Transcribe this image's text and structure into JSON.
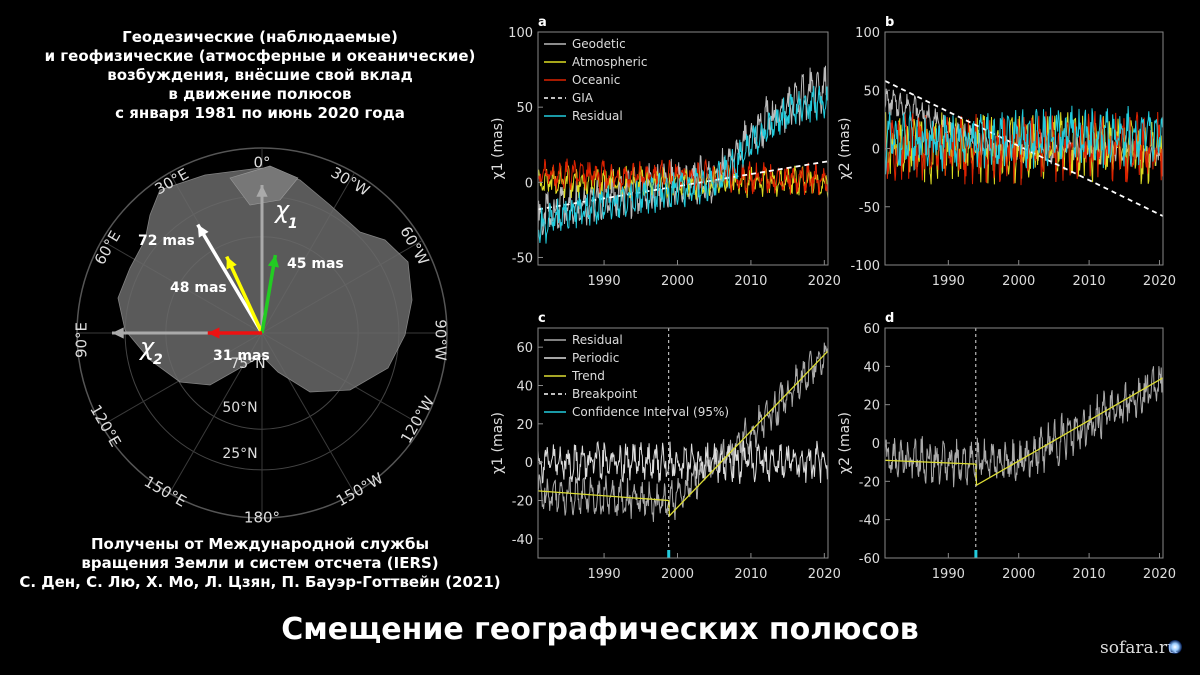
{
  "intro": {
    "lines": [
      "Геодезические (наблюдаемые)",
      "и геофизические (атмосферные и океанические)",
      "возбуждения, внёсшие свой вклад",
      "в движение полюсов",
      "с января 1981 по июнь 2020 года"
    ]
  },
  "source": {
    "lines": [
      "Получены от Международной службы",
      "вращения Земли и систем отсчета (IERS)",
      "С. Ден, С. Лю, Х. Мо, Л. Цзян, П. Бауэр-Готтвейн (2021)"
    ]
  },
  "title": "Смещение географических полюсов",
  "site": "sofara.ru",
  "polar_map": {
    "longitude_labels": [
      "0°",
      "30°W",
      "60°W",
      "90°W",
      "120°W",
      "150°W",
      "180°",
      "150°E",
      "120°E",
      "90°E",
      "60°E",
      "30°E"
    ],
    "latitude_labels": [
      "75°N",
      "50°N",
      "25°N"
    ],
    "axis_labels": {
      "chi1": "χ",
      "chi1_sub": "1",
      "chi2": "χ",
      "chi2_sub": "2"
    },
    "vectors": [
      {
        "label": "72 mas",
        "color": "#ffffff",
        "magnitude_mas": 72
      },
      {
        "label": "48 mas",
        "color": "#ffff00",
        "magnitude_mas": 48
      },
      {
        "label": "45 mas",
        "color": "#22cc22",
        "magnitude_mas": 45
      },
      {
        "label": "31 mas",
        "color": "#ee1111",
        "magnitude_mas": 31
      }
    ]
  },
  "chart_data": [
    {
      "panel": "a",
      "type": "line",
      "ylabel": "χ1 (mas)",
      "xlim": [
        1981,
        2020.5
      ],
      "ylim": [
        -55,
        100
      ],
      "xticks": [
        1990,
        2000,
        2010,
        2020
      ],
      "yticks": [
        -50,
        0,
        50,
        100
      ],
      "legend": "top-left",
      "series": [
        {
          "name": "Geodetic",
          "color": "#bbbbbb",
          "x": [
            1981,
            1985,
            1990,
            1995,
            2000,
            2005,
            2008,
            2010,
            2012,
            2015,
            2018,
            2020.5
          ],
          "y": [
            -25,
            -15,
            -10,
            -5,
            -2,
            2,
            15,
            30,
            40,
            50,
            60,
            62
          ]
        },
        {
          "name": "Atmospheric",
          "color": "#dddd22",
          "x": [
            1981,
            2020.5
          ],
          "y": [
            0,
            0
          ]
        },
        {
          "name": "Oceanic",
          "color": "#dd2200",
          "x": [
            1981,
            2020.5
          ],
          "y": [
            5,
            2
          ]
        },
        {
          "name": "GIA",
          "color": "#ffffff",
          "dashed": true,
          "x": [
            1981,
            2020.5
          ],
          "y": [
            -18,
            14
          ]
        },
        {
          "name": "Residual",
          "color": "#22ccdd",
          "x": [
            1981,
            1985,
            1990,
            1995,
            2000,
            2005,
            2008,
            2010,
            2012,
            2015,
            2018,
            2020.5
          ],
          "y": [
            -30,
            -20,
            -15,
            -10,
            -5,
            0,
            12,
            28,
            35,
            45,
            52,
            55
          ]
        }
      ]
    },
    {
      "panel": "b",
      "type": "line",
      "ylabel": "χ2 (mas)",
      "xlim": [
        1981,
        2020.5
      ],
      "ylim": [
        -100,
        100
      ],
      "xticks": [
        1990,
        2000,
        2010,
        2020
      ],
      "yticks": [
        -100,
        -50,
        0,
        50,
        100
      ],
      "series": [
        {
          "name": "Geodetic",
          "color": "#bbbbbb",
          "x": [
            1981,
            1985,
            1990,
            1995,
            2000,
            2005,
            2010,
            2015,
            2020.5
          ],
          "y": [
            40,
            35,
            15,
            5,
            0,
            0,
            0,
            0,
            -5
          ]
        },
        {
          "name": "Atmospheric",
          "color": "#dddd22",
          "x": [
            1981,
            2020.5
          ],
          "y": [
            0,
            0
          ]
        },
        {
          "name": "Oceanic",
          "color": "#dd2200",
          "x": [
            1981,
            2020.5
          ],
          "y": [
            0,
            0
          ]
        },
        {
          "name": "GIA",
          "color": "#ffffff",
          "dashed": true,
          "x": [
            1981,
            2020.5
          ],
          "y": [
            58,
            -58
          ]
        },
        {
          "name": "Residual",
          "color": "#22ccdd",
          "x": [
            1981,
            1990,
            2000,
            2010,
            2020.5
          ],
          "y": [
            5,
            5,
            8,
            10,
            12
          ]
        }
      ]
    },
    {
      "panel": "c",
      "type": "line",
      "ylabel": "χ1 (mas)",
      "xlim": [
        1981,
        2020.5
      ],
      "ylim": [
        -50,
        70
      ],
      "xticks": [
        1990,
        2000,
        2010,
        2020
      ],
      "yticks": [
        -40,
        -20,
        0,
        20,
        40,
        60
      ],
      "legend": "top-left",
      "breakpoint": 1998.8,
      "series": [
        {
          "name": "Residual",
          "color": "#aaaaaa",
          "x": [
            1981,
            1990,
            1998.8,
            2005,
            2010,
            2015,
            2020.5
          ],
          "y": [
            -16,
            -18,
            -22,
            0,
            15,
            35,
            58
          ]
        },
        {
          "name": "Periodic",
          "color": "#dddddd",
          "x": [
            1981,
            2020.5
          ],
          "y": [
            0,
            0
          ]
        },
        {
          "name": "Trend",
          "color": "#dddd33",
          "x": [
            1981,
            1998.8,
            1998.9,
            2020.5
          ],
          "y": [
            -15,
            -20,
            -28,
            58
          ]
        },
        {
          "name": "Breakpoint",
          "color": "#ffffff",
          "dashed": true,
          "x": [
            1998.8,
            1998.8
          ],
          "y": [
            -50,
            70
          ]
        },
        {
          "name": "Confidence Interval (95%)",
          "color": "#22ccdd",
          "x": [
            1998.6,
            1999.0
          ],
          "y": [
            -50,
            -50
          ]
        }
      ]
    },
    {
      "panel": "d",
      "type": "line",
      "ylabel": "χ2 (mas)",
      "xlim": [
        1981,
        2020.5
      ],
      "ylim": [
        -60,
        60
      ],
      "xticks": [
        1990,
        2000,
        2010,
        2020
      ],
      "yticks": [
        -60,
        -40,
        -20,
        0,
        20,
        40,
        60
      ],
      "breakpoint": 1993.9,
      "series": [
        {
          "name": "Residual",
          "color": "#aaaaaa",
          "x": [
            1981,
            1993.9,
            2000,
            2010,
            2020.5
          ],
          "y": [
            -8,
            -10,
            -10,
            10,
            32
          ]
        },
        {
          "name": "Trend",
          "color": "#dddd33",
          "x": [
            1981,
            1993.9,
            1994.0,
            2020.5
          ],
          "y": [
            -9,
            -11,
            -22,
            34
          ]
        },
        {
          "name": "Breakpoint",
          "color": "#ffffff",
          "dashed": true,
          "x": [
            1993.9,
            1993.9
          ],
          "y": [
            -60,
            60
          ]
        },
        {
          "name": "Confidence Interval (95%)",
          "color": "#22ccdd",
          "x": [
            1993.7,
            1994.1
          ],
          "y": [
            -60,
            -60
          ]
        }
      ]
    }
  ]
}
